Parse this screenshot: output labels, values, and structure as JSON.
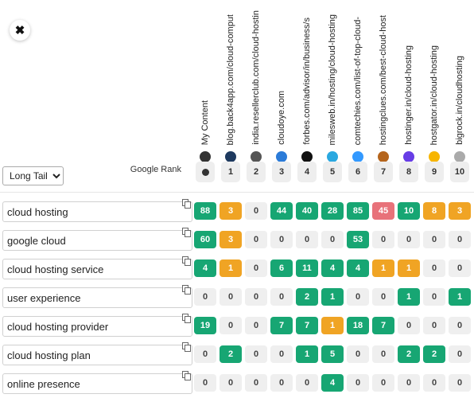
{
  "close_label": "✖",
  "mode_select": {
    "value": "Long Tail",
    "options": [
      "Long Tail"
    ]
  },
  "google_rank_label": "Google Rank",
  "columns": [
    {
      "label": "My Content",
      "rank": "",
      "icon": "user-dot-icon",
      "icon_color": "#333333"
    },
    {
      "label": "blog.back4app.com/cloud-comput",
      "rank": "1",
      "icon": "back4app-icon",
      "icon_color": "#1e3a5f"
    },
    {
      "label": "india.resellerclub.com/cloud-hostin",
      "rank": "2",
      "icon": "resellerclub-icon",
      "icon_color": "#555555"
    },
    {
      "label": "cloudoye.com",
      "rank": "3",
      "icon": "cloudoye-icon",
      "icon_color": "#2b7bd8"
    },
    {
      "label": "forbes.com/advisor/in/business/s",
      "rank": "4",
      "icon": "forbes-icon",
      "icon_color": "#111111"
    },
    {
      "label": "milesweb.in/hosting/cloud-hosting",
      "rank": "5",
      "icon": "milesweb-icon",
      "icon_color": "#2aa8e0"
    },
    {
      "label": "comtechies.com/list-of-top-cloud-",
      "rank": "6",
      "icon": "comtechies-icon",
      "icon_color": "#3399ff"
    },
    {
      "label": "hostingclues.com/best-cloud-host",
      "rank": "7",
      "icon": "hostingclues-icon",
      "icon_color": "#b5651d"
    },
    {
      "label": "hostinger.in/cloud-hosting",
      "rank": "8",
      "icon": "hostinger-icon",
      "icon_color": "#673de6"
    },
    {
      "label": "hostgator.in/cloud-hosting",
      "rank": "9",
      "icon": "hostgator-icon",
      "icon_color": "#f7b500"
    },
    {
      "label": "bigrock.in/cloudhosting",
      "rank": "10",
      "icon": "bigrock-icon",
      "icon_color": "#aaaaaa"
    }
  ],
  "colors": {
    "green": "#17a673",
    "orange": "#f0a424",
    "red": "#e8727a",
    "zero": "#efefef"
  },
  "rows": [
    {
      "keyword": "cloud hosting",
      "cells": [
        [
          "88",
          "green"
        ],
        [
          "3",
          "orange"
        ],
        [
          "0",
          "zero"
        ],
        [
          "44",
          "green"
        ],
        [
          "40",
          "green"
        ],
        [
          "28",
          "green"
        ],
        [
          "85",
          "green"
        ],
        [
          "45",
          "red"
        ],
        [
          "10",
          "green"
        ],
        [
          "8",
          "orange"
        ],
        [
          "3",
          "orange"
        ]
      ]
    },
    {
      "keyword": "google cloud",
      "cells": [
        [
          "60",
          "green"
        ],
        [
          "3",
          "orange"
        ],
        [
          "0",
          "zero"
        ],
        [
          "0",
          "zero"
        ],
        [
          "0",
          "zero"
        ],
        [
          "0",
          "zero"
        ],
        [
          "53",
          "green"
        ],
        [
          "0",
          "zero"
        ],
        [
          "0",
          "zero"
        ],
        [
          "0",
          "zero"
        ],
        [
          "0",
          "zero"
        ]
      ]
    },
    {
      "keyword": "cloud hosting service",
      "cells": [
        [
          "4",
          "green"
        ],
        [
          "1",
          "orange"
        ],
        [
          "0",
          "zero"
        ],
        [
          "6",
          "green"
        ],
        [
          "11",
          "green"
        ],
        [
          "4",
          "green"
        ],
        [
          "4",
          "green"
        ],
        [
          "1",
          "orange"
        ],
        [
          "1",
          "orange"
        ],
        [
          "0",
          "zero"
        ],
        [
          "0",
          "zero"
        ]
      ]
    },
    {
      "keyword": "user experience",
      "cells": [
        [
          "0",
          "zero"
        ],
        [
          "0",
          "zero"
        ],
        [
          "0",
          "zero"
        ],
        [
          "0",
          "zero"
        ],
        [
          "2",
          "green"
        ],
        [
          "1",
          "green"
        ],
        [
          "0",
          "zero"
        ],
        [
          "0",
          "zero"
        ],
        [
          "1",
          "green"
        ],
        [
          "0",
          "zero"
        ],
        [
          "1",
          "green"
        ]
      ]
    },
    {
      "keyword": "cloud hosting provider",
      "cells": [
        [
          "19",
          "green"
        ],
        [
          "0",
          "zero"
        ],
        [
          "0",
          "zero"
        ],
        [
          "7",
          "green"
        ],
        [
          "7",
          "green"
        ],
        [
          "1",
          "orange"
        ],
        [
          "18",
          "green"
        ],
        [
          "7",
          "green"
        ],
        [
          "0",
          "zero"
        ],
        [
          "0",
          "zero"
        ],
        [
          "0",
          "zero"
        ]
      ]
    },
    {
      "keyword": "cloud hosting plan",
      "cells": [
        [
          "0",
          "zero"
        ],
        [
          "2",
          "green"
        ],
        [
          "0",
          "zero"
        ],
        [
          "0",
          "zero"
        ],
        [
          "1",
          "green"
        ],
        [
          "5",
          "green"
        ],
        [
          "0",
          "zero"
        ],
        [
          "0",
          "zero"
        ],
        [
          "2",
          "green"
        ],
        [
          "2",
          "green"
        ],
        [
          "0",
          "zero"
        ]
      ]
    },
    {
      "keyword": "online presence",
      "cells": [
        [
          "0",
          "zero"
        ],
        [
          "0",
          "zero"
        ],
        [
          "0",
          "zero"
        ],
        [
          "0",
          "zero"
        ],
        [
          "0",
          "zero"
        ],
        [
          "4",
          "green"
        ],
        [
          "0",
          "zero"
        ],
        [
          "0",
          "zero"
        ],
        [
          "0",
          "zero"
        ],
        [
          "0",
          "zero"
        ],
        [
          "0",
          "zero"
        ]
      ]
    }
  ]
}
